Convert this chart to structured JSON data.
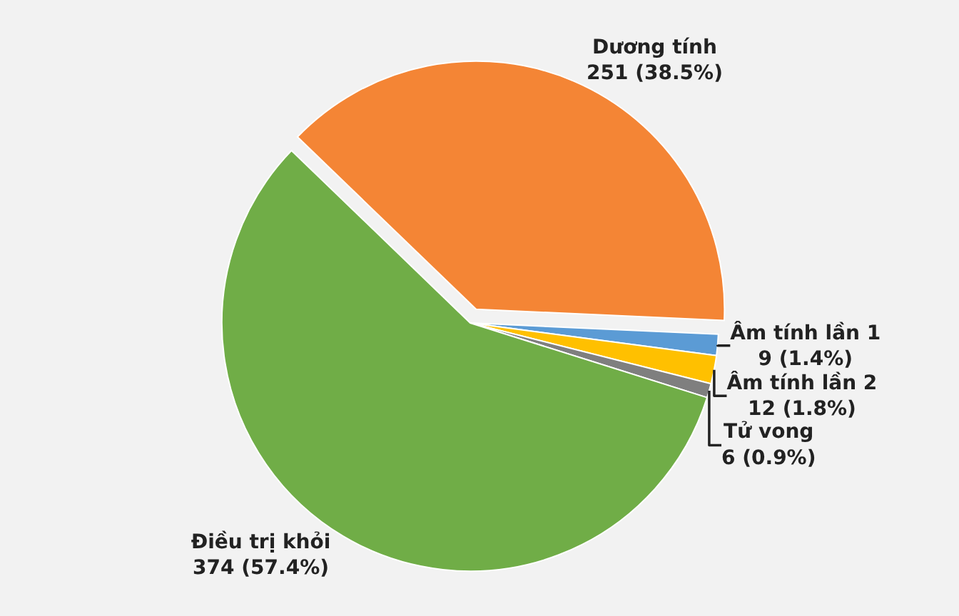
{
  "chart_data": {
    "type": "pie",
    "categories": [
      "Dương tính",
      "Âm tính lần 1",
      "Âm tính lần 2",
      "Tử vong",
      "Điều trị khỏi"
    ],
    "values": [
      251,
      9,
      12,
      6,
      374
    ],
    "colors": [
      "#f48535",
      "#5b9bd5",
      "#ffc000",
      "#7f7f7f",
      "#70ad47"
    ],
    "value_labels": [
      "251 (38.5%)",
      "9 (1.4%)",
      "12 (1.8%)",
      "6 (0.9%)",
      "374 (57.4%)"
    ],
    "legend": false
  }
}
